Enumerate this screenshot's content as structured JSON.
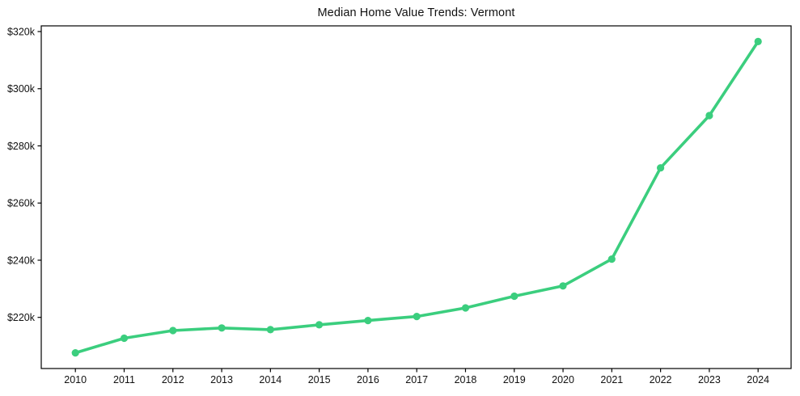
{
  "chart_data": {
    "type": "line",
    "title": "Median Home Value Trends: Vermont",
    "xlabel": "",
    "ylabel": "",
    "grid": false,
    "legend": null,
    "background_color": "#ffffff",
    "plot_border_color": "#000000",
    "line_color": "#3bce7e",
    "marker": "circle",
    "x": [
      2010,
      2011,
      2012,
      2013,
      2014,
      2015,
      2016,
      2017,
      2018,
      2019,
      2020,
      2021,
      2022,
      2023,
      2024
    ],
    "x_tick_labels": [
      "2010",
      "2011",
      "2012",
      "2013",
      "2014",
      "2015",
      "2016",
      "2017",
      "2018",
      "2019",
      "2020",
      "2021",
      "2022",
      "2023",
      "2024"
    ],
    "series": [
      {
        "name": "Median Home Value",
        "values_usd_k": [
          207.6,
          212.7,
          215.4,
          216.3,
          215.7,
          217.4,
          218.9,
          220.3,
          223.3,
          227.4,
          231.0,
          240.4,
          272.3,
          290.6,
          316.5
        ]
      }
    ],
    "value_unit": "USD thousands",
    "y_ticks": [
      {
        "value": 220,
        "label": "$220k"
      },
      {
        "value": 240,
        "label": "$240k"
      },
      {
        "value": 260,
        "label": "$260k"
      },
      {
        "value": 280,
        "label": "$280k"
      },
      {
        "value": 300,
        "label": "$300k"
      },
      {
        "value": 320,
        "label": "$320k"
      }
    ],
    "ylim_usd_k": [
      202.1,
      322.0
    ]
  }
}
